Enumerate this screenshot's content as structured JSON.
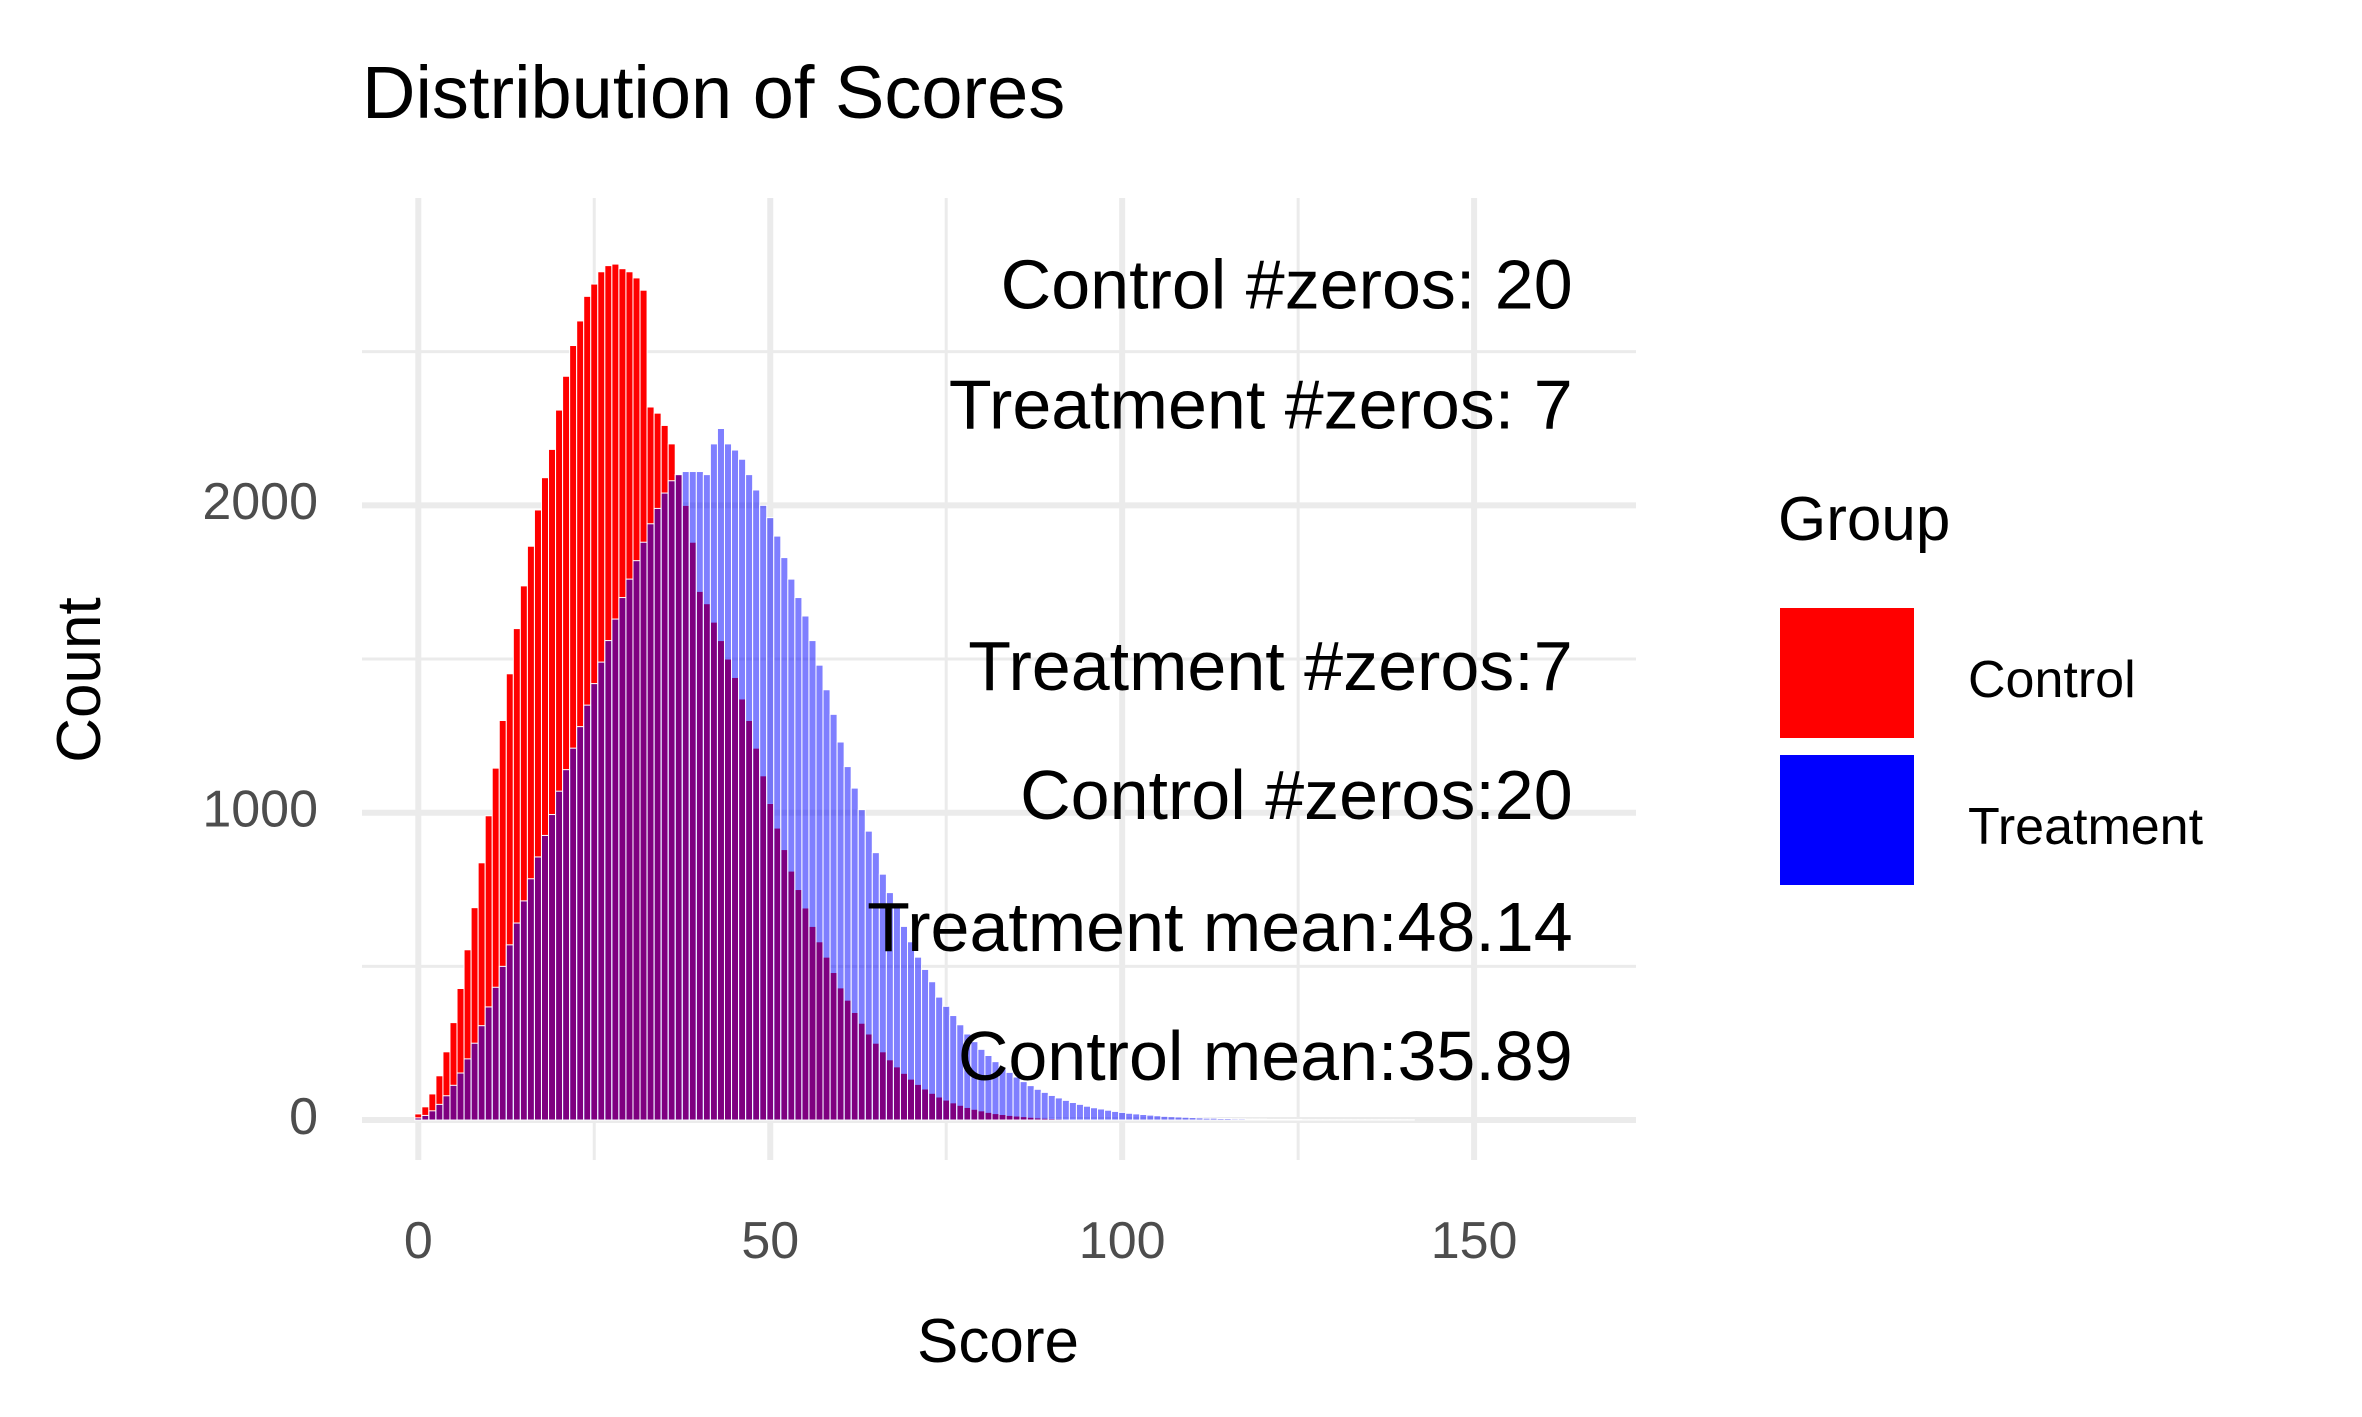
{
  "chart_data": {
    "type": "bar",
    "title": "Distribution of Scores",
    "xlabel": "Score",
    "ylabel": "Count",
    "xlim": [
      -8,
      173
    ],
    "ylim": [
      -130,
      3000
    ],
    "x_ticks": [
      0,
      50,
      100,
      150
    ],
    "x_tick_labels": [
      "0",
      "50",
      "100",
      "150"
    ],
    "y_ticks": [
      0,
      1000,
      2000
    ],
    "y_tick_labels": [
      "0",
      "1000",
      "2000"
    ],
    "grid": true,
    "legend": {
      "title": "Group",
      "position": "right",
      "entries": [
        {
          "label": "Control",
          "color": "#ff0000"
        },
        {
          "label": "Treatment",
          "color": "#0000ff"
        }
      ]
    },
    "bin_width": 1,
    "series": [
      {
        "name": "Control",
        "color": "#ff0000",
        "x": [
          0,
          1,
          2,
          3,
          4,
          5,
          6,
          7,
          8,
          9,
          10,
          11,
          12,
          13,
          14,
          15,
          16,
          17,
          18,
          19,
          20,
          21,
          22,
          23,
          24,
          25,
          26,
          27,
          28,
          29,
          30,
          31,
          32,
          33,
          34,
          35,
          36,
          37,
          38,
          39,
          40,
          41,
          42,
          43,
          44,
          45,
          46,
          47,
          48,
          49,
          50,
          51,
          52,
          53,
          54,
          55,
          56,
          57,
          58,
          59,
          60,
          61,
          62,
          63,
          64,
          65,
          66,
          67,
          68,
          69,
          70,
          71,
          72,
          73,
          74,
          75,
          76,
          77,
          78,
          79,
          80,
          81,
          82,
          83,
          84,
          85,
          86,
          87,
          88,
          89,
          90,
          91,
          92,
          93,
          94,
          95,
          96,
          97,
          98,
          99,
          100,
          101,
          102,
          103,
          104,
          105,
          106,
          107,
          108,
          109,
          110,
          111,
          112,
          113,
          114,
          115,
          116,
          117,
          118,
          119,
          120
        ],
        "values": [
          20,
          43,
          85,
          144,
          222,
          317,
          428,
          554,
          691,
          837,
          990,
          1145,
          1300,
          1452,
          1599,
          1738,
          1867,
          1985,
          2090,
          2182,
          2310,
          2420,
          2520,
          2600,
          2680,
          2720,
          2760,
          2780,
          2785,
          2770,
          2760,
          2740,
          2700,
          2320,
          2300,
          2260,
          2200,
          2100,
          2000,
          1880,
          1720,
          1680,
          1620,
          1560,
          1500,
          1440,
          1370,
          1300,
          1210,
          1120,
          1030,
          950,
          880,
          810,
          750,
          690,
          630,
          580,
          530,
          480,
          430,
          390,
          350,
          315,
          280,
          250,
          222,
          196,
          173,
          152,
          133,
          116,
          101,
          87,
          75,
          65,
          56,
          48,
          41,
          35,
          30,
          25,
          21,
          18,
          15,
          13,
          11,
          9,
          7,
          6,
          5,
          4,
          3,
          3,
          2,
          2,
          2,
          1,
          1,
          1,
          1,
          1,
          0,
          0,
          0,
          0,
          0,
          0,
          0,
          0,
          0,
          0,
          0,
          0,
          0,
          0,
          0,
          0,
          0,
          0,
          0
        ]
      },
      {
        "name": "Treatment",
        "color": "#0000ff",
        "x": [
          0,
          1,
          2,
          3,
          4,
          5,
          6,
          7,
          8,
          9,
          10,
          11,
          12,
          13,
          14,
          15,
          16,
          17,
          18,
          19,
          20,
          21,
          22,
          23,
          24,
          25,
          26,
          27,
          28,
          29,
          30,
          31,
          32,
          33,
          34,
          35,
          36,
          37,
          38,
          39,
          40,
          41,
          42,
          43,
          44,
          45,
          46,
          47,
          48,
          49,
          50,
          51,
          52,
          53,
          54,
          55,
          56,
          57,
          58,
          59,
          60,
          61,
          62,
          63,
          64,
          65,
          66,
          67,
          68,
          69,
          70,
          71,
          72,
          73,
          74,
          75,
          76,
          77,
          78,
          79,
          80,
          81,
          82,
          83,
          84,
          85,
          86,
          87,
          88,
          89,
          90,
          91,
          92,
          93,
          94,
          95,
          96,
          97,
          98,
          99,
          100,
          101,
          102,
          103,
          104,
          105,
          106,
          107,
          108,
          109,
          110,
          111,
          112,
          113,
          114,
          115,
          116,
          117,
          118,
          119,
          120,
          121,
          122,
          123,
          124,
          125,
          126,
          127,
          128,
          129,
          130,
          131,
          132,
          133,
          134,
          135,
          136,
          137,
          138,
          139,
          140,
          141,
          142,
          143,
          144,
          145,
          146,
          147,
          148,
          149,
          150,
          151,
          152,
          153,
          154,
          155,
          156,
          157,
          158,
          159,
          160
        ],
        "values": [
          7,
          15,
          30,
          51,
          79,
          113,
          153,
          199,
          250,
          307,
          368,
          432,
          500,
          570,
          641,
          713,
          785,
          856,
          926,
          994,
          1070,
          1140,
          1210,
          1280,
          1350,
          1420,
          1490,
          1560,
          1630,
          1700,
          1760,
          1820,
          1880,
          1940,
          1990,
          2040,
          2080,
          2100,
          2110,
          2110,
          2110,
          2100,
          2200,
          2250,
          2200,
          2180,
          2150,
          2100,
          2050,
          2000,
          1960,
          1900,
          1830,
          1760,
          1700,
          1640,
          1560,
          1480,
          1400,
          1320,
          1230,
          1150,
          1080,
          1010,
          940,
          870,
          800,
          740,
          690,
          630,
          580,
          530,
          490,
          450,
          400,
          370,
          340,
          310,
          280,
          255,
          230,
          210,
          190,
          170,
          155,
          140,
          125,
          112,
          100,
          90,
          80,
          72,
          64,
          57,
          51,
          45,
          40,
          36,
          32,
          28,
          25,
          22,
          20,
          18,
          16,
          14,
          12,
          11,
          10,
          9,
          8,
          7,
          6,
          6,
          5,
          5,
          4,
          4,
          3,
          3,
          3,
          2,
          2,
          2,
          2,
          2,
          1,
          1,
          1,
          1,
          1,
          1,
          1,
          1,
          1,
          1,
          1,
          1,
          1,
          1,
          1,
          1,
          0,
          0,
          0,
          0,
          0,
          0,
          0,
          0,
          0,
          0,
          0,
          0,
          0,
          0,
          0,
          0,
          0,
          0,
          0
        ]
      }
    ],
    "annotations": [
      {
        "text": "Control #zeros: 20",
        "x": 164,
        "y": 2700
      },
      {
        "text": "Treatment #zeros: 7",
        "x": 164,
        "y": 2310
      },
      {
        "text": "Treatment #zeros:7",
        "x": 164,
        "y": 1460
      },
      {
        "text": "Control #zeros:20",
        "x": 164,
        "y": 1040
      },
      {
        "text": "Treatment mean:48.14",
        "x": 164,
        "y": 610
      },
      {
        "text": "Control mean:35.89",
        "x": 164,
        "y": 190
      }
    ]
  }
}
